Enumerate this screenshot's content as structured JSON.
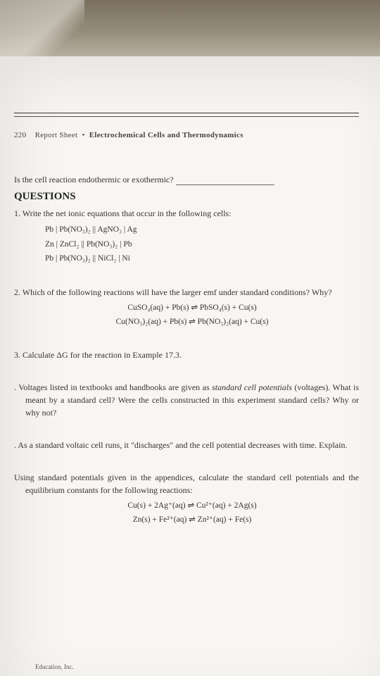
{
  "header": {
    "page_number": "220",
    "sheet_label": "Report Sheet",
    "separator": "•",
    "title": "Electrochemical Cells and Thermodynamics"
  },
  "intro_question": "Is the cell reaction endothermic or exothermic?",
  "section_heading": "QUESTIONS",
  "q1": {
    "number": "1.",
    "text": "Write the net ionic equations that occur in the following cells:",
    "cells": [
      "Pb | Pb(NO₃)₂ || AgNO₃ | Ag",
      "Zn | ZnCl₂ || Pb(NO₃)₂ | Pb",
      "Pb | Pb(NO₃)₂ || NiCl₂ | Ni"
    ]
  },
  "q2": {
    "number": "2.",
    "text": "Which of the following reactions will have the larger emf under standard conditions? Why?",
    "eq1": "CuSO₄(aq) + Pb(s) ⇌ PbSO₄(s) + Cu(s)",
    "eq2": "Cu(NO₃)₂(aq) + Pb(s) ⇌ Pb(NO₃)₂(aq) + Cu(s)"
  },
  "q3": {
    "number": "3.",
    "text": "Calculate ΔG for the reaction in Example 17.3."
  },
  "q4": {
    "number": ".",
    "text": "Voltages listed in textbooks and handbooks are given as standard cell potentials (voltages). What is meant by a standard cell? Were the cells constructed in this experiment standard cells? Why or why not?",
    "italic_phrase": "standard cell potentials"
  },
  "q5": {
    "number": ".",
    "text": "As a standard voltaic cell runs, it \"discharges\" and the cell potential decreases with time. Explain."
  },
  "q6": {
    "number": "",
    "text": "Using standard potentials given in the appendices, calculate the standard cell potentials and the equilibrium constants for the following reactions:",
    "eq1": "Cu(s) + 2Ag⁺(aq) ⇌ Cu²⁺(aq) + 2Ag(s)",
    "eq2": "Zn(s) + Fe²⁺(aq) ⇌ Zn²⁺(aq) + Fe(s)"
  },
  "footer": "Education, Inc.",
  "colors": {
    "text": "#333333",
    "heading": "#222222",
    "background": "#f8f6f2",
    "line": "#333333"
  }
}
